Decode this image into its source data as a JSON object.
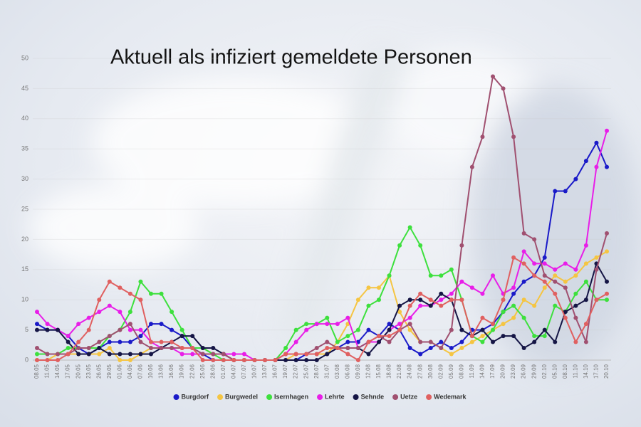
{
  "chart_data": {
    "type": "line",
    "title": "Aktuell als infiziert gemeldete Personen",
    "categories": [
      "08.05",
      "11.05",
      "14.05",
      "17.05",
      "20.05",
      "23.05",
      "26.05",
      "29.05",
      "01.06",
      "04.06",
      "07.06",
      "10.06",
      "13.06",
      "16.06",
      "19.06",
      "22.06",
      "25.06",
      "28.06",
      "01.07",
      "04.07",
      "07.07",
      "10.07",
      "13.07",
      "16.07",
      "19.07",
      "22.07",
      "25.07",
      "28.07",
      "31.07",
      "03.08",
      "06.08",
      "09.08",
      "12.08",
      "15.08",
      "18.08",
      "21.08",
      "24.08",
      "27.08",
      "30.08",
      "02.09",
      "05.09",
      "08.09",
      "11.09",
      "14.09",
      "17.09",
      "20.09",
      "23.09",
      "26.09",
      "29.09",
      "02.10",
      "05.10",
      "08.10",
      "11.10",
      "14.10",
      "17.10",
      "20.10"
    ],
    "series": [
      {
        "name": "Burgdorf",
        "color": "#1a1ac8",
        "values": [
          6,
          5,
          5,
          4,
          2,
          1,
          2,
          3,
          3,
          3,
          4,
          6,
          6,
          5,
          4,
          2,
          1,
          0,
          0,
          0,
          0,
          0,
          0,
          0,
          0,
          0,
          1,
          1,
          1,
          2,
          3,
          3,
          5,
          4,
          6,
          5,
          2,
          1,
          2,
          3,
          2,
          3,
          5,
          5,
          6,
          8,
          11,
          13,
          14,
          17,
          28,
          28,
          30,
          33,
          36,
          32
        ]
      },
      {
        "name": "Burgwedel",
        "color": "#f5c542",
        "values": [
          0,
          0,
          1,
          1,
          1,
          1,
          1,
          2,
          0,
          0,
          1,
          2,
          2,
          2,
          2,
          2,
          2,
          1,
          1,
          0,
          0,
          0,
          0,
          0,
          0,
          1,
          1,
          1,
          1,
          3,
          6,
          10,
          12,
          12,
          14,
          8,
          5,
          3,
          3,
          2,
          1,
          2,
          3,
          4,
          5,
          6,
          7,
          10,
          9,
          12,
          14,
          13,
          14,
          16,
          17,
          18
        ]
      },
      {
        "name": "Isernhagen",
        "color": "#3de03d",
        "values": [
          1,
          1,
          1,
          2,
          2,
          2,
          2,
          4,
          5,
          8,
          13,
          11,
          11,
          8,
          5,
          2,
          2,
          1,
          0,
          0,
          0,
          0,
          0,
          0,
          2,
          5,
          6,
          6,
          7,
          3,
          4,
          5,
          9,
          10,
          14,
          19,
          22,
          19,
          14,
          14,
          15,
          10,
          4,
          3,
          5,
          8,
          9,
          7,
          4,
          4,
          9,
          8,
          11,
          13,
          10,
          10
        ]
      },
      {
        "name": "Lehrte",
        "color": "#e81ee8",
        "values": [
          8,
          6,
          5,
          4,
          6,
          7,
          8,
          9,
          8,
          5,
          5,
          3,
          2,
          2,
          1,
          1,
          1,
          1,
          1,
          1,
          1,
          0,
          0,
          0,
          1,
          3,
          5,
          6,
          6,
          6,
          7,
          2,
          3,
          3,
          5,
          6,
          7,
          9,
          9,
          10,
          11,
          13,
          12,
          11,
          14,
          11,
          12,
          18,
          16,
          16,
          15,
          16,
          15,
          19,
          32,
          38
        ]
      },
      {
        "name": "Sehnde",
        "color": "#151545",
        "values": [
          5,
          5,
          5,
          3,
          1,
          1,
          2,
          1,
          1,
          1,
          1,
          1,
          2,
          3,
          4,
          4,
          2,
          2,
          1,
          0,
          0,
          0,
          0,
          0,
          0,
          0,
          0,
          0,
          1,
          2,
          2,
          2,
          1,
          3,
          5,
          9,
          10,
          10,
          9,
          11,
          10,
          5,
          4,
          5,
          3,
          4,
          4,
          2,
          3,
          5,
          3,
          8,
          9,
          10,
          16,
          13
        ]
      },
      {
        "name": "Uetze",
        "color": "#a05070",
        "values": [
          2,
          1,
          1,
          1,
          2,
          2,
          3,
          4,
          5,
          6,
          3,
          2,
          2,
          2,
          2,
          2,
          1,
          1,
          1,
          0,
          0,
          0,
          0,
          0,
          1,
          1,
          1,
          2,
          3,
          2,
          2,
          2,
          3,
          4,
          3,
          5,
          6,
          3,
          3,
          2,
          5,
          19,
          32,
          37,
          47,
          45,
          37,
          21,
          20,
          14,
          13,
          12,
          7,
          3,
          15,
          21
        ]
      },
      {
        "name": "Wedemark",
        "color": "#e06060",
        "values": [
          0,
          0,
          0,
          1,
          3,
          5,
          10,
          13,
          12,
          11,
          10,
          3,
          3,
          3,
          2,
          2,
          0,
          0,
          0,
          0,
          0,
          0,
          0,
          0,
          1,
          1,
          1,
          1,
          2,
          2,
          1,
          0,
          3,
          4,
          4,
          5,
          9,
          11,
          10,
          9,
          10,
          10,
          4,
          7,
          6,
          10,
          17,
          16,
          14,
          13,
          11,
          7,
          3,
          6,
          10,
          11
        ]
      }
    ],
    "ylim": [
      0,
      50
    ],
    "yticks": [
      0,
      5,
      10,
      15,
      20,
      25,
      30,
      35,
      40,
      45,
      50
    ],
    "grid": true
  }
}
